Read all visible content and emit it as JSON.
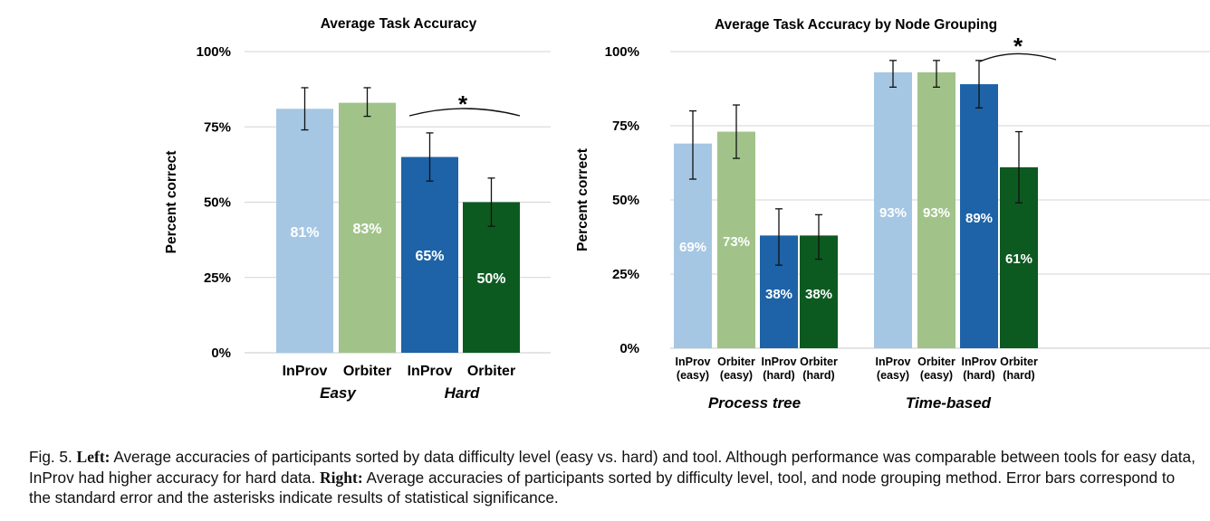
{
  "chart_data": [
    {
      "type": "bar",
      "title": "Average Task Accuracy",
      "ylabel": "Percent correct",
      "xlabel": "",
      "ylim": [
        0,
        100
      ],
      "yticks": [
        "0%",
        "25%",
        "50%",
        "75%",
        "100%"
      ],
      "grid": true,
      "categories": [
        "InProv",
        "Orbiter",
        "InProv",
        "Orbiter"
      ],
      "groups": [
        "Easy",
        "Hard"
      ],
      "values": [
        81,
        83,
        65,
        50
      ],
      "value_labels": [
        "81%",
        "83%",
        "65%",
        "50%"
      ],
      "error_bars": [
        [
          74,
          88
        ],
        [
          78.5,
          88
        ],
        [
          57,
          73
        ],
        [
          42,
          58
        ]
      ],
      "colors": [
        "#a5c7e3",
        "#a1c38a",
        "#1e63a7",
        "#0d5a21"
      ],
      "label_colors": [
        "#ffffff",
        "#ffffff",
        "#ffffff",
        "#ffffff"
      ],
      "significance": {
        "marker": "*",
        "between": [
          2,
          3
        ]
      }
    },
    {
      "type": "bar",
      "title": "Average Task Accuracy by Node Grouping",
      "ylabel": "Percent correct",
      "xlabel": "",
      "ylim": [
        0,
        100
      ],
      "yticks": [
        "0%",
        "25%",
        "50%",
        "75%",
        "100%"
      ],
      "grid": true,
      "categories": [
        "InProv (easy)",
        "Orbiter (easy)",
        "InProv (hard)",
        "Orbiter (hard)",
        "InProv (easy)",
        "Orbiter (easy)",
        "InProv (hard)",
        "Orbiter (hard)"
      ],
      "category_lines": [
        [
          "InProv",
          "(easy)"
        ],
        [
          "Orbiter",
          "(easy)"
        ],
        [
          "InProv",
          "(hard)"
        ],
        [
          "Orbiter",
          "(hard)"
        ],
        [
          "InProv",
          "(easy)"
        ],
        [
          "Orbiter",
          "(easy)"
        ],
        [
          "InProv",
          "(hard)"
        ],
        [
          "Orbiter",
          "(hard)"
        ]
      ],
      "groups": [
        "Process tree",
        "Time-based"
      ],
      "values": [
        69,
        73,
        38,
        38,
        93,
        93,
        89,
        61
      ],
      "value_labels": [
        "69%",
        "73%",
        "38%",
        "38%",
        "93%",
        "93%",
        "89%",
        "61%"
      ],
      "error_bars": [
        [
          57,
          80
        ],
        [
          64,
          82
        ],
        [
          28,
          47
        ],
        [
          30,
          45
        ],
        [
          88,
          97
        ],
        [
          88,
          97
        ],
        [
          81,
          97
        ],
        [
          49,
          73
        ]
      ],
      "colors": [
        "#a5c7e3",
        "#a1c38a",
        "#1e63a7",
        "#0d5a21",
        "#a5c7e3",
        "#a1c38a",
        "#1e63a7",
        "#0d5a21"
      ],
      "significance": {
        "marker": "*",
        "between": [
          6,
          7
        ]
      }
    }
  ],
  "caption": {
    "fig": "Fig. 5.",
    "left_label": "Left:",
    "left_text": "Average accuracies of participants sorted by data difficulty level (easy vs.  hard) and tool.  Although performance was comparable between tools for easy data, InProv had higher accuracy for hard data.",
    "right_label": "Right:",
    "right_text": "Average accuracies of participants sorted by difficulty level, tool, and node grouping method. Error bars correspond to the standard error and the asterisks indicate results of statistical significance."
  }
}
